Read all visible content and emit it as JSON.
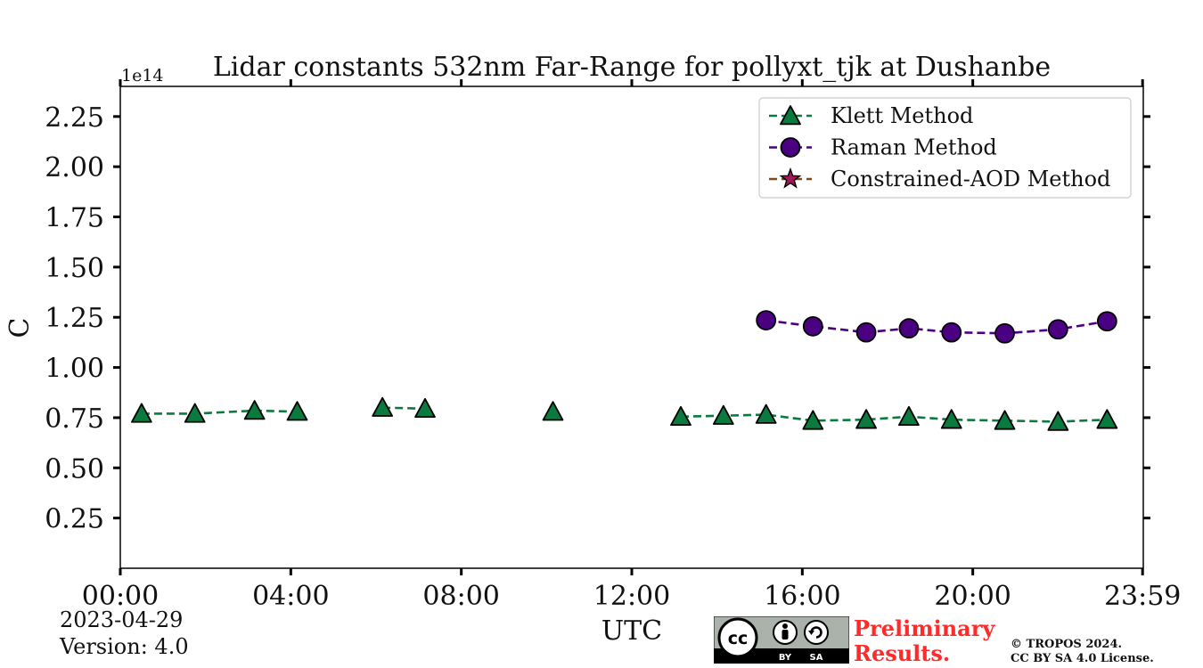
{
  "chart_data": {
    "type": "line",
    "title": "Lidar constants 532nm Far-Range for pollyxt_tjk at Dushanbe",
    "xlabel": "UTC",
    "ylabel": "C",
    "y_multiplier_label": "1e14",
    "xlim": [
      0,
      24
    ],
    "ylim": [
      0,
      2.4
    ],
    "x_ticks": [
      {
        "value": 0,
        "label": "00:00"
      },
      {
        "value": 4,
        "label": "04:00"
      },
      {
        "value": 8,
        "label": "08:00"
      },
      {
        "value": 12,
        "label": "12:00"
      },
      {
        "value": 16,
        "label": "16:00"
      },
      {
        "value": 20,
        "label": "20:00"
      },
      {
        "value": 23.983,
        "label": "23:59"
      }
    ],
    "y_ticks": [
      {
        "value": 0.25,
        "label": "0.25"
      },
      {
        "value": 0.5,
        "label": "0.50"
      },
      {
        "value": 0.75,
        "label": "0.75"
      },
      {
        "value": 1.0,
        "label": "1.00"
      },
      {
        "value": 1.25,
        "label": "1.25"
      },
      {
        "value": 1.5,
        "label": "1.50"
      },
      {
        "value": 1.75,
        "label": "1.75"
      },
      {
        "value": 2.0,
        "label": "2.00"
      },
      {
        "value": 2.25,
        "label": "2.25"
      }
    ],
    "grid": false,
    "legend_position": "top-right",
    "series": [
      {
        "name": "Klett Method",
        "color": "#0b7a3e",
        "marker": "triangle",
        "segments": [
          [
            [
              0.5,
              0.77
            ],
            [
              1.75,
              0.77
            ],
            [
              3.15,
              0.785
            ],
            [
              4.15,
              0.78
            ]
          ],
          [
            [
              6.15,
              0.8
            ],
            [
              7.15,
              0.795
            ]
          ],
          [
            [
              10.15,
              0.78
            ]
          ],
          [
            [
              13.15,
              0.755
            ],
            [
              14.15,
              0.76
            ],
            [
              15.15,
              0.765
            ],
            [
              16.25,
              0.735
            ],
            [
              17.5,
              0.74
            ],
            [
              18.5,
              0.755
            ],
            [
              19.5,
              0.74
            ],
            [
              20.75,
              0.735
            ],
            [
              22.0,
              0.73
            ],
            [
              23.15,
              0.74
            ]
          ]
        ]
      },
      {
        "name": "Raman Method",
        "color": "#4b0082",
        "marker": "circle",
        "segments": [
          [
            [
              15.15,
              1.235
            ],
            [
              16.25,
              1.205
            ],
            [
              17.5,
              1.175
            ],
            [
              18.5,
              1.195
            ],
            [
              19.5,
              1.175
            ],
            [
              20.75,
              1.17
            ],
            [
              22.0,
              1.19
            ],
            [
              23.15,
              1.23
            ]
          ]
        ]
      },
      {
        "name": "Constrained-AOD Method",
        "color": "#8b4513",
        "marker_color": "#a0185a",
        "marker": "star",
        "segments": []
      }
    ]
  },
  "footer": {
    "date": "2023-04-29",
    "version": "Version: 4.0",
    "preliminary_line1": "Preliminary",
    "preliminary_line2": "Results.",
    "copyright_line1": "© TROPOS 2024.",
    "copyright_line2": "CC BY SA 4.0 License.",
    "badge_by": "BY",
    "badge_sa": "SA"
  }
}
